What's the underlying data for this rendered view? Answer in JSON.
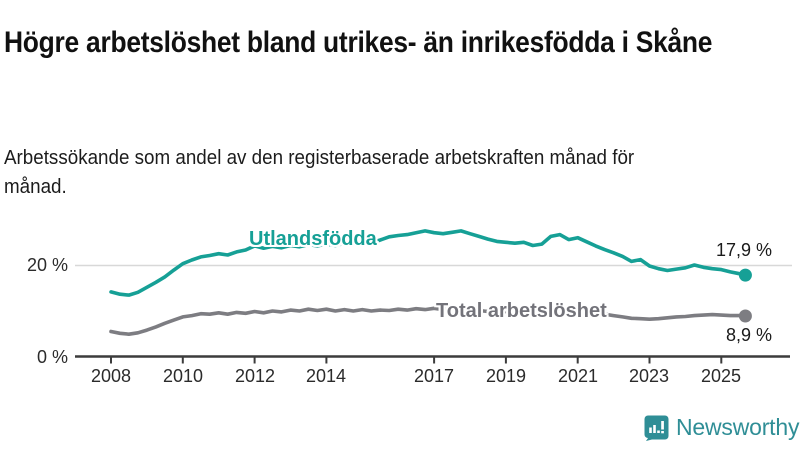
{
  "header": {
    "title": "Högre arbetslöshet bland utrikes- än inrikesfödda i Skåne",
    "subtitle": "Arbetssökande som andel av den registerbaserade arbetskraften månad för månad."
  },
  "chart_data": {
    "type": "line",
    "title": "Högre arbetslöshet bland utrikes- än inrikesfödda i Skåne",
    "x_unit": "year (decimal years, monthly statistic sampled quarterly)",
    "xlim": [
      2007.5,
      2026
    ],
    "ylim": [
      0,
      30
    ],
    "grid": "single horizontal gridline at 20 %",
    "legend_position": "inline labels on lines",
    "x": [
      2008,
      2008.25,
      2008.5,
      2008.75,
      2009,
      2009.25,
      2009.5,
      2009.75,
      2010,
      2010.25,
      2010.5,
      2010.75,
      2011,
      2011.25,
      2011.5,
      2011.75,
      2012,
      2012.25,
      2012.5,
      2012.75,
      2013,
      2013.25,
      2013.5,
      2013.75,
      2014,
      2014.25,
      2014.5,
      2014.75,
      2015,
      2015.25,
      2015.5,
      2015.75,
      2016,
      2016.25,
      2016.5,
      2016.75,
      2017,
      2017.25,
      2017.5,
      2017.75,
      2018,
      2018.25,
      2018.5,
      2018.75,
      2019,
      2019.25,
      2019.5,
      2019.75,
      2020,
      2020.25,
      2020.5,
      2020.75,
      2021,
      2021.25,
      2021.5,
      2021.75,
      2022,
      2022.25,
      2022.5,
      2022.75,
      2023,
      2023.25,
      2023.5,
      2023.75,
      2024,
      2024.25,
      2024.5,
      2024.75,
      2025,
      2025.25,
      2025.5,
      2025.67
    ],
    "series": [
      {
        "key": "utlandsfodda",
        "name": "Utlandsfödda",
        "color": "#16a096",
        "end_label": "17,9 %",
        "end_value": 17.9,
        "values": [
          14.2,
          13.7,
          13.5,
          14.1,
          15.2,
          16.3,
          17.5,
          19.0,
          20.4,
          21.2,
          21.9,
          22.2,
          22.6,
          22.3,
          23.0,
          23.4,
          24.3,
          23.8,
          24.2,
          23.9,
          24.4,
          24.1,
          24.6,
          24.3,
          24.7,
          24.4,
          24.9,
          24.7,
          25.2,
          25.0,
          25.6,
          26.3,
          26.6,
          26.8,
          27.2,
          27.6,
          27.2,
          27.0,
          27.3,
          27.6,
          27.0,
          26.4,
          25.8,
          25.3,
          25.1,
          24.9,
          25.1,
          24.4,
          24.7,
          26.4,
          26.8,
          25.7,
          26.1,
          25.2,
          24.3,
          23.5,
          22.8,
          22.0,
          20.9,
          21.3,
          19.9,
          19.3,
          18.9,
          19.2,
          19.5,
          20.1,
          19.6,
          19.3,
          19.1,
          18.6,
          18.2,
          17.9
        ]
      },
      {
        "key": "total",
        "name": "Total arbetslöshet",
        "color": "#7d7d82",
        "end_label": "8,9 %",
        "end_value": 8.9,
        "values": [
          5.5,
          5.1,
          4.9,
          5.2,
          5.8,
          6.5,
          7.3,
          8.0,
          8.7,
          9.0,
          9.4,
          9.3,
          9.6,
          9.3,
          9.7,
          9.5,
          9.9,
          9.6,
          10.0,
          9.8,
          10.2,
          10.0,
          10.4,
          10.1,
          10.4,
          10.0,
          10.3,
          10.0,
          10.3,
          10.0,
          10.2,
          10.1,
          10.4,
          10.2,
          10.5,
          10.3,
          10.6,
          10.3,
          10.5,
          10.6,
          10.3,
          10.1,
          9.9,
          9.8,
          9.9,
          9.7,
          9.9,
          9.6,
          9.8,
          10.8,
          11.0,
          10.6,
          10.7,
          10.2,
          9.7,
          9.3,
          9.0,
          8.7,
          8.4,
          8.3,
          8.2,
          8.3,
          8.5,
          8.7,
          8.8,
          9.0,
          9.1,
          9.2,
          9.1,
          9.0,
          9.0,
          8.9
        ]
      }
    ],
    "xtick_years": [
      2008,
      2010,
      2012,
      2014,
      2017,
      2019,
      2021,
      2023,
      2025
    ],
    "xtick_labels": [
      "2008",
      "2010",
      "2012",
      "2014",
      "2017",
      "2019",
      "2021",
      "2023",
      "2025"
    ],
    "ytick_values": [
      0,
      20
    ],
    "ytick_labels": [
      "0 %",
      "20 %"
    ]
  },
  "branding": {
    "name": "Newsworthy",
    "icon": "newsworthy-chart-bubble-icon",
    "color": "#2f8e96"
  }
}
